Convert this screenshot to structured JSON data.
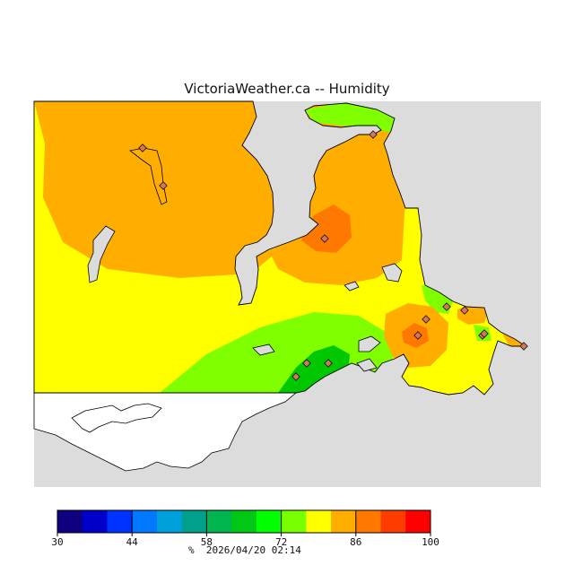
{
  "title": "VictoriaWeather.ca -- Humidity",
  "units_label": "%",
  "timestamp": "2026/04/20 02:14",
  "colors": {
    "water": "#dcdcdc",
    "land_outline": "#000000",
    "marker": "#d07858"
  },
  "map_layers": [
    {
      "name": "humidity-band-78-84",
      "color": "#ffae00"
    },
    {
      "name": "humidity-band-72-78",
      "color": "#ffff00"
    },
    {
      "name": "humidity-band-66-72",
      "color": "#7fff00"
    },
    {
      "name": "humidity-band-60-66",
      "color": "#00c800"
    },
    {
      "name": "humidity-band-84-90",
      "color": "#ff7800"
    }
  ],
  "color_scale": {
    "min": 30,
    "max": 100,
    "step": 5,
    "colors": [
      "#0f0080",
      "#0000c8",
      "#0032ff",
      "#0078ff",
      "#00a0dc",
      "#00a08c",
      "#00b450",
      "#00c814",
      "#00ff00",
      "#78ff00",
      "#ffff00",
      "#ffae00",
      "#ff7800",
      "#ff3c00",
      "#ff0000"
    ],
    "tick_labels": [
      "30",
      "44",
      "58",
      "72",
      "86",
      "100"
    ]
  },
  "station_count": 14
}
